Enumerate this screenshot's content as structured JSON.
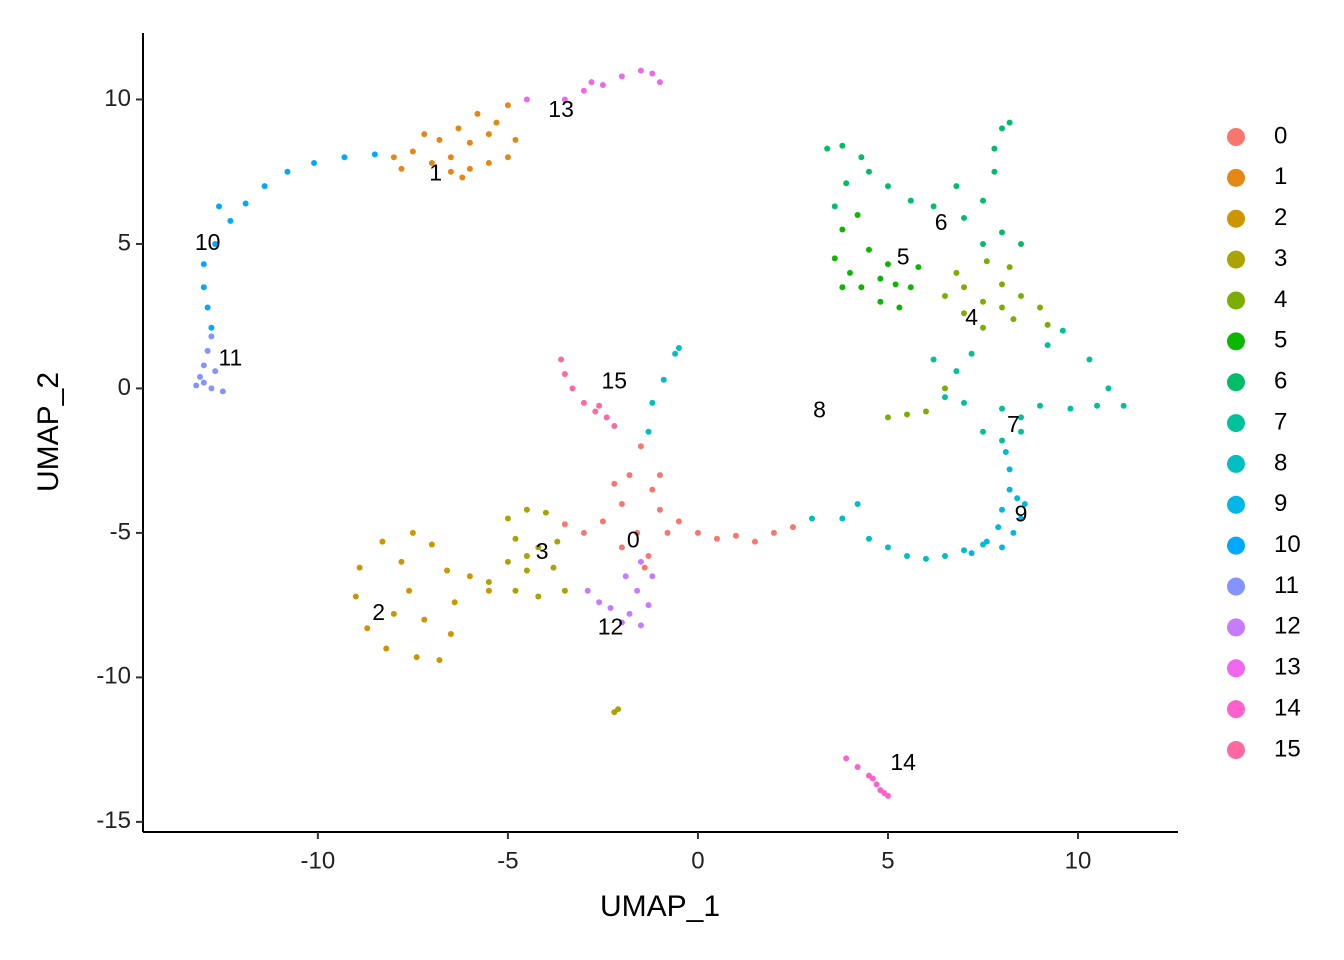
{
  "chart_data": {
    "type": "scatter",
    "x_label": "UMAP_1",
    "y_label": "UMAP_2",
    "xlim": [
      -14.6,
      12.63
    ],
    "ylim": [
      -15.35,
      12.3
    ],
    "xticks": [
      -10,
      -5,
      0,
      5,
      10
    ],
    "yticks": [
      -15,
      -10,
      -5,
      0,
      5,
      10
    ],
    "grid": false,
    "legend": "right",
    "series": [
      {
        "name": "0",
        "color": "#F8766D",
        "x": [
          -1.5,
          -1.8,
          -1.2,
          -2,
          -1,
          -2.5,
          -1.6,
          -0.8,
          -3,
          -2,
          -1.3,
          -0.5,
          0,
          0.5,
          1,
          1.5,
          2,
          2.5,
          -1,
          -2.2,
          -3.5,
          -1.4
        ],
        "y": [
          -2,
          -3,
          -3.5,
          -4,
          -4.2,
          -4.6,
          -5,
          -5,
          -5,
          -5.5,
          -5.8,
          -4.6,
          -5,
          -5.2,
          -5.1,
          -5.3,
          -5,
          -4.8,
          -3,
          -3.3,
          -4.7,
          -6.2
        ]
      },
      {
        "name": "1",
        "color": "#E68613",
        "x": [
          -8,
          -7.5,
          -7,
          -6.5,
          -6,
          -5.5,
          -5,
          -4.8,
          -5.3,
          -5.8,
          -6.3,
          -6.8,
          -7.2,
          -6,
          -5.5,
          -7.8,
          -6.5,
          -5,
          -6.2
        ],
        "y": [
          8,
          8.2,
          7.8,
          8,
          7.6,
          7.8,
          8,
          8.6,
          9.2,
          9.5,
          9,
          8.6,
          8.8,
          8.5,
          8.8,
          7.6,
          7.5,
          9.8,
          7.3
        ]
      },
      {
        "name": "2",
        "color": "#CD9600",
        "x": [
          -7.5,
          -8.3,
          -8.9,
          -9,
          -8.7,
          -8.2,
          -7.4,
          -6.8,
          -6.5,
          -6.4,
          -6.6,
          -7,
          -7.6,
          -8,
          -7.2,
          -7.8,
          -6,
          -5.5
        ],
        "y": [
          -5,
          -5.3,
          -6.2,
          -7.2,
          -8.3,
          -9,
          -9.3,
          -9.4,
          -8.5,
          -7.4,
          -6.3,
          -5.4,
          -7,
          -7.8,
          -8,
          -6,
          -6.5,
          -7
        ]
      },
      {
        "name": "3",
        "color": "#ABA300",
        "x": [
          -5,
          -4.5,
          -4,
          -4.8,
          -4.2,
          -3.7,
          -5,
          -4.5,
          -3.8,
          -4.8,
          -4.2,
          -3.5,
          -5.5,
          -2.1,
          -2.2,
          -4.5
        ],
        "y": [
          -4.5,
          -4.2,
          -4.3,
          -5.2,
          -5.5,
          -5.3,
          -6,
          -6.3,
          -6.2,
          -7,
          -7.2,
          -7,
          -6.7,
          -11.1,
          -11.2,
          -5.8
        ]
      },
      {
        "name": "4",
        "color": "#7CAE00",
        "x": [
          6.5,
          7,
          7.5,
          8,
          8.5,
          9,
          8.2,
          7.6,
          7,
          7.5,
          8.3,
          9.2,
          6.8,
          8,
          6,
          5.5,
          5,
          6.5
        ],
        "y": [
          3.2,
          3.5,
          3,
          3.6,
          3.2,
          2.8,
          4.2,
          4.4,
          2.6,
          2.1,
          2.4,
          2.2,
          4,
          2.8,
          -0.8,
          -0.9,
          -1,
          0
        ]
      },
      {
        "name": "5",
        "color": "#0CB702",
        "x": [
          3.6,
          4,
          4.3,
          4.8,
          5.3,
          5.6,
          5.8,
          5,
          4.5,
          3.8,
          4.2,
          4.8,
          5.2,
          3.8
        ],
        "y": [
          4.5,
          4,
          3.5,
          3,
          2.8,
          3.5,
          4.2,
          4.3,
          4.8,
          5.5,
          6,
          3.8,
          3.6,
          3.5
        ]
      },
      {
        "name": "6",
        "color": "#00BE67",
        "x": [
          3.4,
          3.8,
          4.3,
          3.9,
          3.6,
          5,
          5.6,
          6.2,
          7,
          7.5,
          7.8,
          7.8,
          8,
          8.2,
          7.5,
          8,
          8.5,
          4.5,
          6.8
        ],
        "y": [
          8.3,
          8.4,
          8,
          7.1,
          6.3,
          7,
          6.5,
          6.3,
          5.9,
          6.5,
          7.5,
          8.3,
          9,
          9.2,
          5,
          5.4,
          5,
          7.5,
          7
        ]
      },
      {
        "name": "7",
        "color": "#00C19A",
        "x": [
          6.2,
          6.5,
          7,
          8,
          8.5,
          9,
          9.8,
          10.5,
          11.2,
          10.8,
          10.3,
          9.6,
          9.2,
          6.8,
          7.5,
          8.5,
          8,
          7.2
        ],
        "y": [
          1,
          -0.3,
          -0.5,
          -0.7,
          -1,
          -0.6,
          -0.7,
          -0.6,
          -0.6,
          0,
          1,
          2,
          1.5,
          0.6,
          -1.5,
          -1.5,
          -1.8,
          1.2
        ]
      },
      {
        "name": "8",
        "color": "#00BFC4",
        "x": [
          -1.3,
          -1.2,
          -0.9,
          -0.6,
          -0.5,
          3,
          3.8,
          4.2,
          4.5,
          5,
          5.5,
          6,
          6.5,
          7,
          7.5
        ],
        "y": [
          -1.5,
          -0.5,
          0.3,
          1.2,
          1.4,
          -4.5,
          -4.5,
          -4,
          -5.2,
          -5.5,
          -5.8,
          -5.9,
          -5.8,
          -5.6,
          -5.4
        ]
      },
      {
        "name": "9",
        "color": "#00B8E7",
        "x": [
          8.2,
          8.4,
          8,
          8.5,
          7.9,
          8.3,
          7.6,
          8,
          7.2,
          8.1,
          8.2,
          8.6
        ],
        "y": [
          -3.5,
          -3.8,
          -4.2,
          -4.5,
          -4.8,
          -5,
          -5.3,
          -5.5,
          -5.7,
          -2.2,
          -2.8,
          -4
        ]
      },
      {
        "name": "10",
        "color": "#00A9FF",
        "x": [
          -8.5,
          -9.3,
          -10.1,
          -10.8,
          -11.4,
          -11.9,
          -12.3,
          -12.7,
          -13,
          -13,
          -12.9,
          -12.8,
          -12.6
        ],
        "y": [
          8.1,
          8,
          7.8,
          7.5,
          7,
          6.4,
          5.8,
          5,
          4.3,
          3.5,
          2.8,
          2.1,
          6.3
        ]
      },
      {
        "name": "11",
        "color": "#8494FF",
        "x": [
          -12.8,
          -12.9,
          -13,
          -13.1,
          -13.2,
          -12.8,
          -12.5,
          -13,
          -12.7
        ],
        "y": [
          1.8,
          1.3,
          0.8,
          0.4,
          0.1,
          0,
          -0.1,
          0.2,
          0.6
        ]
      },
      {
        "name": "12",
        "color": "#C77CFF",
        "x": [
          -1.5,
          -1.2,
          -1.6,
          -1.3,
          -1.8,
          -2.3,
          -2.6,
          -2,
          -1.5,
          -2.9,
          -1.9
        ],
        "y": [
          -6,
          -6.5,
          -7,
          -7.5,
          -7.8,
          -7.6,
          -7.4,
          -8.1,
          -8.2,
          -7,
          -6.5
        ]
      },
      {
        "name": "13",
        "color": "#ED68ED",
        "x": [
          -3.5,
          -3,
          -2.5,
          -2,
          -1.5,
          -1.2,
          -1,
          -2.8,
          -4.5
        ],
        "y": [
          10,
          10.3,
          10.5,
          10.8,
          11,
          10.9,
          10.6,
          10.6,
          10
        ]
      },
      {
        "name": "14",
        "color": "#FF61CC",
        "x": [
          3.9,
          4.2,
          4.5,
          4.7,
          4.9,
          5,
          4.6,
          4.8
        ],
        "y": [
          -12.8,
          -13.1,
          -13.4,
          -13.7,
          -14,
          -14.1,
          -13.5,
          -13.9
        ]
      },
      {
        "name": "15",
        "color": "#FF68A1",
        "x": [
          -3.6,
          -3.5,
          -3.3,
          -3,
          -2.7,
          -2.4,
          -2.2,
          -2.6
        ],
        "y": [
          1,
          0.5,
          0,
          -0.5,
          -0.8,
          -1,
          -1.3,
          -0.6
        ]
      }
    ],
    "annotations": [
      {
        "text": "0",
        "x": -1.7,
        "y": -5.3
      },
      {
        "text": "1",
        "x": -6.9,
        "y": 7.4
      },
      {
        "text": "2",
        "x": -8.4,
        "y": -7.8
      },
      {
        "text": "3",
        "x": -4.1,
        "y": -5.7
      },
      {
        "text": "4",
        "x": 7.2,
        "y": 2.4
      },
      {
        "text": "5",
        "x": 5.4,
        "y": 4.5
      },
      {
        "text": "6",
        "x": 6.4,
        "y": 5.7
      },
      {
        "text": "7",
        "x": 8.3,
        "y": -1.3
      },
      {
        "text": "8",
        "x": 3.2,
        "y": -0.8
      },
      {
        "text": "9",
        "x": 8.5,
        "y": -4.4
      },
      {
        "text": "10",
        "x": -12.9,
        "y": 5
      },
      {
        "text": "11",
        "x": -12.3,
        "y": 1
      },
      {
        "text": "12",
        "x": -2.3,
        "y": -8.3
      },
      {
        "text": "13",
        "x": -3.6,
        "y": 9.6
      },
      {
        "text": "14",
        "x": 5.4,
        "y": -13
      },
      {
        "text": "15",
        "x": -2.2,
        "y": 0.2
      }
    ]
  }
}
